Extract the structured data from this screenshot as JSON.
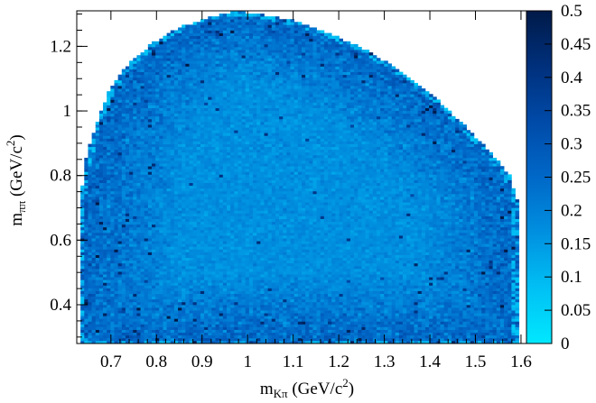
{
  "chart_data": {
    "type": "heatmap",
    "title": "",
    "xlabel": {
      "base": "m",
      "sub": "Kπ",
      "unit_pre": " (GeV/c",
      "unit_sup": "2",
      "unit_post": ")"
    },
    "ylabel": {
      "base": "m",
      "sub": "ππ",
      "unit_pre": " (GeV/c",
      "unit_sup": "2",
      "unit_post": ")"
    },
    "xlim": [
      0.625,
      1.612
    ],
    "ylim": [
      0.28,
      1.31
    ],
    "xticks": [
      0.7,
      0.8,
      0.9,
      1.0,
      1.1,
      1.2,
      1.3,
      1.4,
      1.5,
      1.6
    ],
    "xtick_labels": [
      "0.7",
      "0.8",
      "0.9",
      "1",
      "1.1",
      "1.2",
      "1.3",
      "1.4",
      "1.5",
      "1.6"
    ],
    "yticks": [
      0.4,
      0.6,
      0.8,
      1.0,
      1.2
    ],
    "ytick_labels": [
      "0.4",
      "0.6",
      "0.8",
      "1",
      "1.2"
    ],
    "colorbar": {
      "range": [
        0,
        0.5
      ],
      "ticks": [
        0,
        0.05,
        0.1,
        0.15,
        0.2,
        0.25,
        0.3,
        0.35,
        0.4,
        0.45,
        0.5
      ],
      "tick_labels": [
        "0",
        "0.05",
        "0.1",
        "0.15",
        "0.2",
        "0.25",
        "0.3",
        "0.35",
        "0.4",
        "0.45",
        "0.5"
      ],
      "colors": [
        "#00e8ff",
        "#00c0f4",
        "#0090e0",
        "#0068c8",
        "#004aa8",
        "#00307c",
        "#001a48"
      ]
    },
    "bins": {
      "nx": 120,
      "ny": 120
    },
    "typical_values": {
      "dense_core": 0.17,
      "edge_region": 0.26,
      "outer_fringe": 0.06
    },
    "data_region_boundary": [
      [
        0.633,
        0.28
      ],
      [
        0.633,
        0.72
      ],
      [
        0.643,
        0.84
      ],
      [
        0.665,
        0.95
      ],
      [
        0.695,
        1.06
      ],
      [
        0.735,
        1.14
      ],
      [
        0.79,
        1.21
      ],
      [
        0.85,
        1.26
      ],
      [
        0.92,
        1.29
      ],
      [
        0.97,
        1.31
      ],
      [
        1.03,
        1.3
      ],
      [
        1.1,
        1.28
      ],
      [
        1.18,
        1.24
      ],
      [
        1.26,
        1.19
      ],
      [
        1.34,
        1.12
      ],
      [
        1.42,
        1.03
      ],
      [
        1.48,
        0.95
      ],
      [
        1.54,
        0.86
      ],
      [
        1.575,
        0.8
      ],
      [
        1.593,
        0.72
      ],
      [
        1.593,
        0.28
      ]
    ],
    "grid": false,
    "legend": "colorbar-right"
  }
}
